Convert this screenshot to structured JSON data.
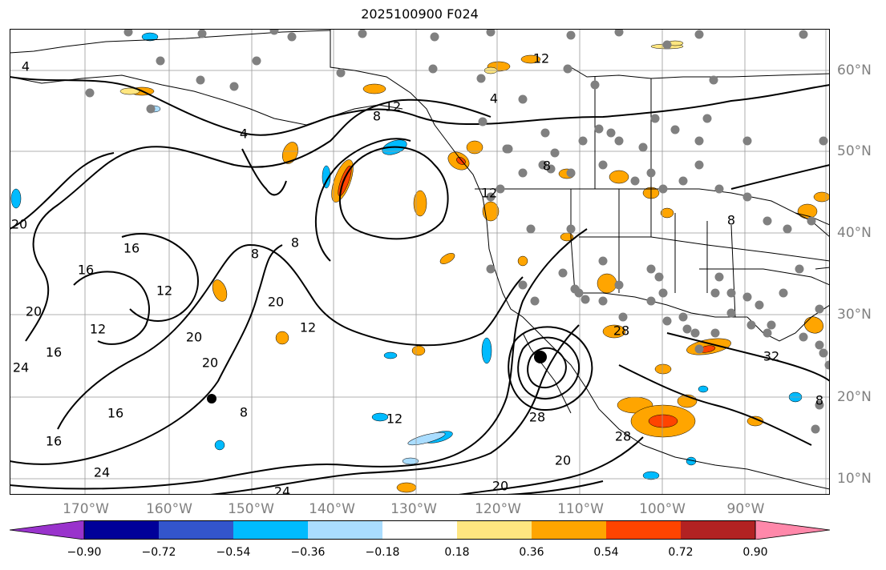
{
  "title": "2025100900 F024",
  "lon_labels": [
    "170°W",
    "160°W",
    "150°W",
    "140°W",
    "130°W",
    "120°W",
    "110°W",
    "100°W",
    "90°W"
  ],
  "lat_labels": [
    "60°N",
    "50°N",
    "40°N",
    "30°N",
    "20°N",
    "10°N"
  ],
  "colorbar": {
    "colors": [
      "#9933cc",
      "#000099",
      "#3355cc",
      "#00bbff",
      "#aaddff",
      "#ffffff",
      "#ffe680",
      "#ffa500",
      "#ff4400",
      "#b22222",
      "#ff88aa"
    ],
    "tick_labels": [
      "−0.90",
      "−0.72",
      "−0.54",
      "−0.36",
      "−0.18",
      "0.18",
      "0.36",
      "0.54",
      "0.72",
      "0.90"
    ]
  },
  "contour_labels": [
    "4",
    "4",
    "4",
    "8",
    "8",
    "8",
    "8",
    "8",
    "12",
    "12",
    "12",
    "12",
    "12",
    "12",
    "16",
    "16",
    "16",
    "16",
    "20",
    "20",
    "20",
    "20",
    "20",
    "20",
    "20",
    "24",
    "24",
    "24",
    "28",
    "28",
    "28",
    "12",
    "32",
    "8",
    "8",
    "16"
  ],
  "stations_visible": true
}
